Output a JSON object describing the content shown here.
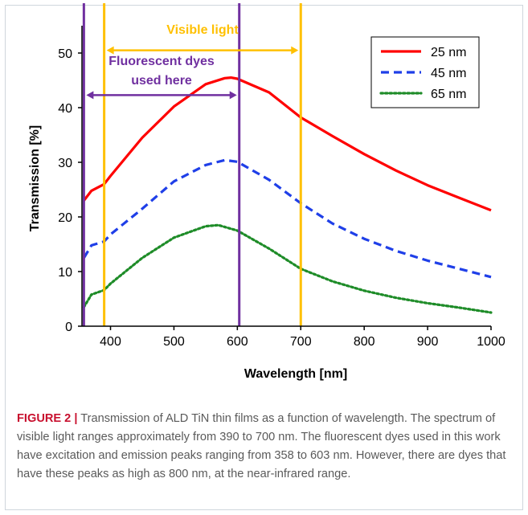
{
  "chart_data": {
    "type": "line",
    "xlabel": "Wavelength [nm]",
    "ylabel": "Transmission [%]",
    "xlim": [
      355,
      1000
    ],
    "ylim": [
      0,
      55
    ],
    "x_ticks": [
      400,
      500,
      600,
      700,
      800,
      900,
      1000
    ],
    "y_ticks": [
      0,
      10,
      20,
      30,
      40,
      50
    ],
    "grid": false,
    "legend_position": "top-right",
    "series": [
      {
        "name": "25 nm",
        "color": "#ff0000",
        "dash": "solid",
        "x": [
          358,
          370,
          390,
          400,
          450,
          500,
          550,
          580,
          590,
          600,
          650,
          700,
          750,
          800,
          850,
          900,
          950,
          1000
        ],
        "y": [
          23,
          24.8,
          26,
          27.5,
          34.5,
          40.2,
          44.3,
          45.4,
          45.5,
          45.3,
          42.8,
          38.2,
          34.8,
          31.5,
          28.5,
          25.8,
          23.5,
          21.2
        ]
      },
      {
        "name": "45 nm",
        "color": "#1f3fe8",
        "dash": "dashed",
        "x": [
          358,
          370,
          390,
          400,
          450,
          500,
          550,
          580,
          600,
          650,
          700,
          750,
          800,
          850,
          900,
          950,
          1000
        ],
        "y": [
          12.5,
          14.8,
          15.5,
          16.8,
          21.5,
          26.5,
          29.5,
          30.4,
          30.1,
          26.8,
          22.5,
          18.8,
          16,
          13.8,
          12,
          10.5,
          9
        ]
      },
      {
        "name": "65 nm",
        "color": "#1e8c28",
        "dash": "dotted",
        "x": [
          358,
          370,
          390,
          400,
          450,
          500,
          550,
          570,
          600,
          650,
          700,
          750,
          800,
          850,
          900,
          950,
          1000
        ],
        "y": [
          3.5,
          5.8,
          6.6,
          7.8,
          12.5,
          16.2,
          18.3,
          18.5,
          17.5,
          14.2,
          10.5,
          8.2,
          6.5,
          5.2,
          4.2,
          3.4,
          2.5
        ]
      }
    ],
    "vertical_lines": [
      {
        "x": 358,
        "color": "#7030a0"
      },
      {
        "x": 390,
        "color": "#ffc000"
      },
      {
        "x": 603,
        "color": "#7030a0"
      },
      {
        "x": 700,
        "color": "#ffc000"
      }
    ],
    "annotations": [
      {
        "text": "Visible light",
        "color": "#ffc000",
        "from": 390,
        "to": 700,
        "y": 50.5,
        "text_y": 53.5
      },
      {
        "text_lines": [
          "Fluorescent dyes",
          "used here"
        ],
        "color": "#7030a0",
        "from": 358,
        "to": 603,
        "y": 42.3,
        "text_y": [
          47.8,
          44.3
        ]
      }
    ]
  },
  "caption": {
    "label": "FIGURE 2 |",
    "text": " Transmission of ALD TiN thin films as a function of wavelength. The spectrum of visible light ranges approximately from 390 to 700 nm. The fluorescent dyes used in this work have excitation and emission peaks ranging from 358 to 603 nm. However, there are dyes that have these peaks as high as 800 nm, at the near-infrared range."
  }
}
